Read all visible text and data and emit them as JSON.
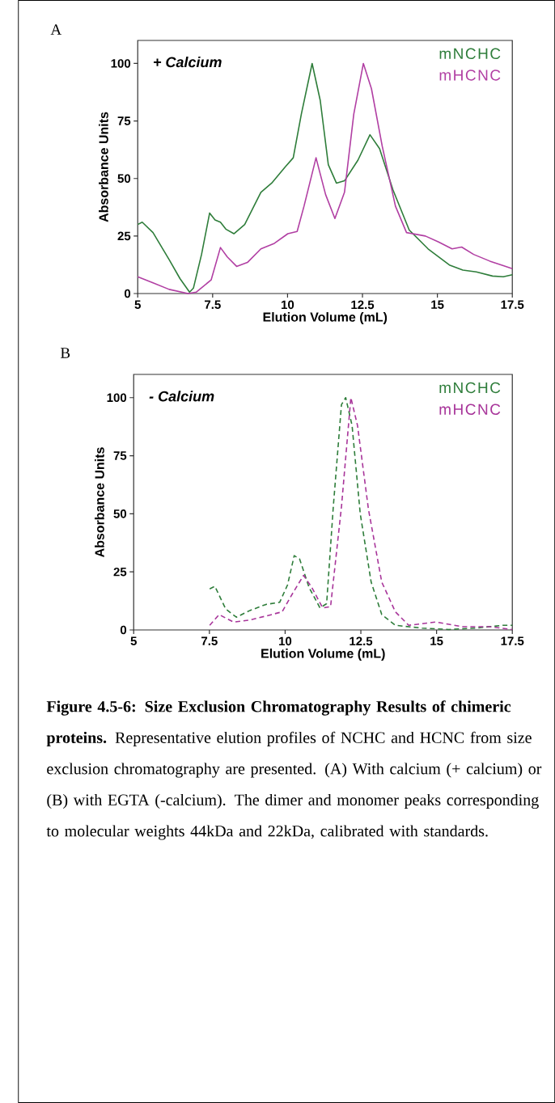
{
  "chart_data": [
    {
      "type": "line",
      "title": "A",
      "xlabel": "Elution Volume (mL)",
      "ylabel": "Absorbance Units",
      "annotations": [
        "+ Calcium"
      ],
      "xlim": [
        5,
        17.5
      ],
      "ylim": [
        0,
        110
      ],
      "xticks": [
        5,
        7.5,
        10,
        12.5,
        15,
        17.5
      ],
      "yticks": [
        0,
        25,
        50,
        75,
        100
      ],
      "legend": "top right",
      "line_style": "solid",
      "series": [
        {
          "name": "mNCHC",
          "color": "#2e7d3a",
          "x": [
            5.0,
            5.15,
            5.51,
            6.05,
            6.41,
            6.73,
            6.86,
            7.13,
            7.4,
            7.58,
            7.76,
            7.94,
            8.21,
            8.57,
            9.11,
            9.47,
            9.92,
            10.19,
            10.46,
            10.82,
            11.09,
            11.36,
            11.63,
            11.9,
            12.35,
            12.75,
            13.07,
            13.52,
            14.06,
            14.69,
            15.4,
            15.85,
            16.3,
            16.84,
            17.2,
            17.5
          ],
          "values": [
            30,
            31,
            26.5,
            14.7,
            6.5,
            0.6,
            2.4,
            17,
            35,
            32,
            31,
            28,
            26,
            30,
            44,
            48,
            55,
            59,
            78,
            100,
            84,
            56,
            48,
            49,
            58,
            69,
            63,
            45,
            27.6,
            19.4,
            12.4,
            10.2,
            9.4,
            7.6,
            7.3,
            8.2
          ]
        },
        {
          "name": "mHCNC",
          "color": "#b13fa3",
          "x": [
            5.0,
            5.51,
            6.05,
            6.68,
            6.95,
            7.45,
            7.76,
            7.99,
            8.3,
            8.66,
            9.11,
            9.56,
            10.01,
            10.32,
            10.55,
            10.95,
            11.27,
            11.58,
            11.9,
            12.21,
            12.53,
            12.8,
            13.16,
            13.6,
            13.97,
            14.6,
            15.04,
            15.49,
            15.81,
            16.21,
            16.75,
            17.2,
            17.5
          ],
          "values": [
            7.3,
            4.7,
            1.8,
            0,
            0.6,
            5.9,
            20,
            15.9,
            11.8,
            13.5,
            19.4,
            21.8,
            26,
            27,
            38,
            59,
            43,
            32.6,
            44,
            78,
            100,
            89,
            64,
            38,
            26.5,
            25,
            22.4,
            19.4,
            20.2,
            17,
            14.1,
            12.1,
            10.8
          ]
        }
      ]
    },
    {
      "type": "line",
      "title": "B",
      "xlabel": "Elution Volume (mL)",
      "ylabel": "Absorbance Units",
      "annotations": [
        "- Calcium",
        "**Figure 4.5-6: Size Exclusion Chromatography Results of chimeric proteins.** Representative elution profiles of NCHC and HCNC from size exclusion chromatography are presented.  (A) With calcium (+ calcium) or (B) with EGTA (-calcium). The dimer and monomer peaks corresponding to molecular weights 44kDa and 22kDa, calibrated with standards."
      ],
      "xlim": [
        5,
        17.5
      ],
      "ylim": [
        0,
        110
      ],
      "xticks": [
        5,
        7.5,
        10,
        12.5,
        15,
        17.5
      ],
      "yticks": [
        0,
        25,
        50,
        75,
        100
      ],
      "legend": "top right",
      "line_style": "dashed",
      "series": [
        {
          "name": "mNCHC",
          "color": "#2e7d3a",
          "x": [
            7.51,
            7.68,
            8.04,
            8.39,
            8.84,
            9.37,
            9.82,
            10.08,
            10.3,
            10.48,
            10.79,
            11.15,
            11.37,
            11.59,
            11.86,
            12.0,
            12.21,
            12.48,
            12.84,
            13.19,
            13.64,
            14.52,
            15.41,
            16.3,
            17.19,
            17.5
          ],
          "values": [
            17.7,
            18.8,
            9,
            5.5,
            8.4,
            11,
            11.9,
            19.4,
            32,
            30.5,
            18.3,
            9.5,
            11.3,
            53,
            97,
            100,
            88,
            50,
            20.6,
            6.6,
            2,
            0.8,
            0.2,
            0.8,
            2,
            2
          ]
        },
        {
          "name": "mHCNC",
          "color": "#a8359a",
          "x": [
            7.51,
            7.82,
            8.3,
            8.84,
            9.37,
            9.9,
            10.26,
            10.61,
            10.88,
            11.24,
            11.5,
            11.86,
            12.17,
            12.39,
            12.75,
            13.19,
            13.64,
            14.08,
            14.97,
            15.86,
            16.75,
            17.5
          ],
          "values": [
            2,
            6.6,
            3.4,
            4.3,
            6,
            7.8,
            16,
            23.5,
            18.3,
            9.5,
            10,
            53,
            100,
            88,
            52,
            20.6,
            7.8,
            2,
            3.4,
            1.4,
            1.4,
            0.2
          ]
        }
      ]
    }
  ]
}
